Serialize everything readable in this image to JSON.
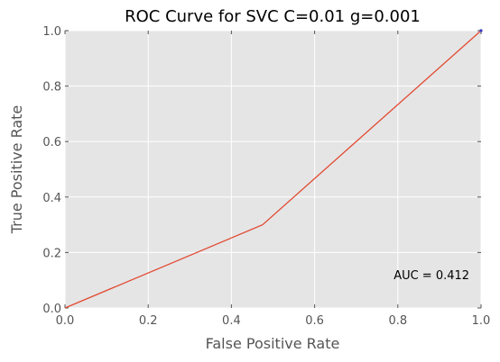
{
  "chart_data": {
    "type": "line",
    "title": "ROC Curve for SVC C=0.01 g=0.001",
    "xlabel": "False Positive Rate",
    "ylabel": "True Positive Rate",
    "xlim": [
      0.0,
      1.0
    ],
    "ylim": [
      0.0,
      1.0
    ],
    "x_ticks": [
      "0.0",
      "0.2",
      "0.4",
      "0.6",
      "0.8",
      "1.0"
    ],
    "y_ticks": [
      "0.0",
      "0.2",
      "0.4",
      "0.6",
      "0.8",
      "1.0"
    ],
    "grid": true,
    "series": [
      {
        "color": "#E24A33",
        "x": [
          0.0,
          0.475,
          1.0
        ],
        "y": [
          0.0,
          0.3,
          1.0
        ]
      }
    ],
    "annotation": {
      "text": "AUC = 0.412",
      "x": 0.79,
      "y": 0.12
    },
    "colors": {
      "plot_background": "#E5E5E5",
      "grid": "#FFFFFF",
      "end_marker": "#3B3BC9"
    }
  }
}
